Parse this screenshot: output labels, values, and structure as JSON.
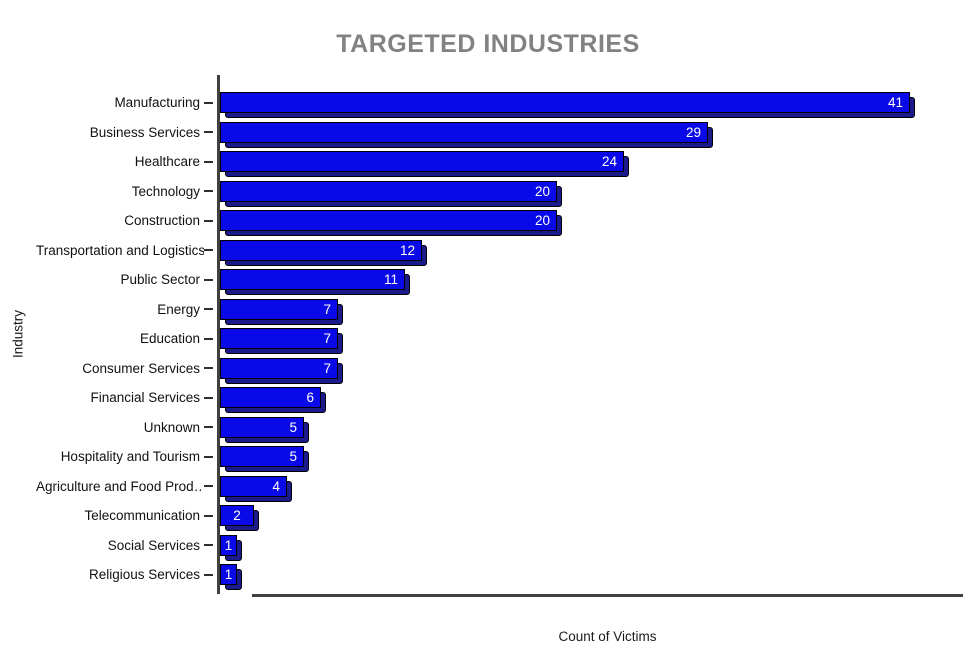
{
  "chart_data": {
    "type": "bar",
    "orientation": "horizontal",
    "title": "TARGETED INDUSTRIES",
    "xlabel": "Count of Victims",
    "ylabel": "Industry",
    "categories": [
      "Manufacturing",
      "Business Services",
      "Healthcare",
      "Technology",
      "Construction",
      "Transportation and Logistics",
      "Public Sector",
      "Energy",
      "Education",
      "Consumer Services",
      "Financial Services",
      "Unknown",
      "Hospitality and Tourism",
      "Agriculture and Food Prod…",
      "Telecommunication",
      "Social Services",
      "Religious Services"
    ],
    "values": [
      41,
      29,
      24,
      20,
      20,
      12,
      11,
      7,
      7,
      7,
      6,
      5,
      5,
      4,
      2,
      1,
      1
    ],
    "xlim": [
      0,
      42
    ],
    "grid": false,
    "legend": false,
    "value_labels_shown": true,
    "colors": {
      "bar_face": "#0a0ae8",
      "bar_depth": "#1a1a8a",
      "bar_outline": "#000000",
      "value_label": "#ffffff",
      "axis": "#404040",
      "tick": "#2e2e2e",
      "title": "#828282",
      "text": "#111111"
    }
  }
}
